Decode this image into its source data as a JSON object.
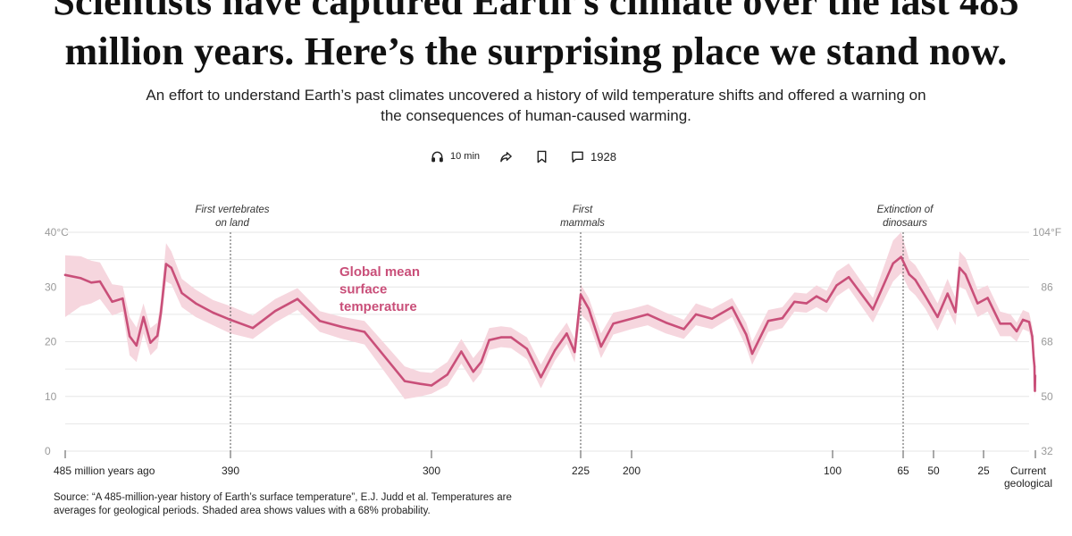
{
  "article": {
    "headline": "Scientists have captured Earth’s climate over the last 485 million years. Here’s the surprising place we stand now.",
    "dek": "An effort to understand Earth’s past climates uncovered a history of wild temperature shifts and offered a warning on the consequences of human-caused warming."
  },
  "actions": {
    "listen_label": "10 min",
    "comments_count": "1928"
  },
  "source_note": "Source: “A 485-million-year history of Earth’s surface temperature”, E.J. Judd et al. Temperatures are averages for geological periods. Shaded area shows values with a 68% probability.",
  "chart_data": {
    "type": "line",
    "series_label": [
      "Global mean",
      "surface",
      "temperature"
    ],
    "x_unit": "million years ago",
    "x_reversed": true,
    "xlim": [
      485,
      0
    ],
    "ylim": [
      0,
      40
    ],
    "grid": true,
    "y_ticks": [
      {
        "value": 0,
        "label": "0"
      },
      {
        "value": 10,
        "label": "10"
      },
      {
        "value": 20,
        "label": "20"
      },
      {
        "value": 30,
        "label": "30"
      },
      {
        "value": 40,
        "label": "40°C"
      }
    ],
    "y_ticks_right": [
      {
        "value": 0,
        "label": "32"
      },
      {
        "value": 10,
        "label": "50"
      },
      {
        "value": 20,
        "label": "68"
      },
      {
        "value": 30,
        "label": "86"
      },
      {
        "value": 40,
        "label": "104°F"
      }
    ],
    "x_ticks": [
      {
        "value": 485,
        "label": [
          "485 million years ago"
        ],
        "anchor": "start"
      },
      {
        "value": 390,
        "label": [
          "390"
        ]
      },
      {
        "value": 300,
        "label": [
          "300"
        ]
      },
      {
        "value": 225,
        "label": [
          "225"
        ]
      },
      {
        "value": 200,
        "label": [
          "200"
        ]
      },
      {
        "value": 100,
        "label": [
          "100"
        ]
      },
      {
        "value": 65,
        "label": [
          "65"
        ]
      },
      {
        "value": 50,
        "label": [
          "50"
        ]
      },
      {
        "value": 25,
        "label": [
          "25"
        ]
      },
      {
        "value": 0,
        "label": [
          "Current",
          "geological",
          "stage"
        ]
      }
    ],
    "annotations": [
      {
        "x": 390,
        "lines": [
          "First vertebrates",
          "on land"
        ]
      },
      {
        "x": 225,
        "lines": [
          "First",
          "mammals"
        ]
      },
      {
        "x": 65,
        "lines": [
          "Extinction of",
          "dinosaurs"
        ]
      }
    ],
    "colors": {
      "line": "#c94f79",
      "band": "#f6d6de",
      "label": "#c94f79",
      "grid": "#e6e6e6",
      "axis_text": "#9a9a9a",
      "tick_text": "#222222",
      "annotation": "#333333"
    },
    "points": [
      {
        "x": 485,
        "y": 32.2,
        "lo": 24.5,
        "hi": 35.8
      },
      {
        "x": 476,
        "y": 31.6,
        "lo": 26.5,
        "hi": 35.6
      },
      {
        "x": 470,
        "y": 30.8,
        "lo": 27.0,
        "hi": 34.8
      },
      {
        "x": 465,
        "y": 31.0,
        "lo": 27.8,
        "hi": 34.5
      },
      {
        "x": 458,
        "y": 27.3,
        "lo": 24.8,
        "hi": 30.5
      },
      {
        "x": 452,
        "y": 27.9,
        "lo": 25.5,
        "hi": 30.2
      },
      {
        "x": 448,
        "y": 21.0,
        "lo": 17.5,
        "hi": 24.5
      },
      {
        "x": 444,
        "y": 19.3,
        "lo": 16.3,
        "hi": 22.6
      },
      {
        "x": 440,
        "y": 24.5,
        "lo": 21.5,
        "hi": 27.0
      },
      {
        "x": 436,
        "y": 19.8,
        "lo": 17.5,
        "hi": 22.5
      },
      {
        "x": 432,
        "y": 21.1,
        "lo": 18.8,
        "hi": 23.5
      },
      {
        "x": 430,
        "y": 25.3,
        "lo": 23.0,
        "hi": 27.5
      },
      {
        "x": 427,
        "y": 34.2,
        "lo": 31.0,
        "hi": 38.0
      },
      {
        "x": 424,
        "y": 33.5,
        "lo": 30.5,
        "hi": 36.5
      },
      {
        "x": 418,
        "y": 28.9,
        "lo": 26.3,
        "hi": 31.5
      },
      {
        "x": 410,
        "y": 27.0,
        "lo": 24.5,
        "hi": 29.5
      },
      {
        "x": 400,
        "y": 25.3,
        "lo": 23.0,
        "hi": 27.6
      },
      {
        "x": 390,
        "y": 24.0,
        "lo": 21.5,
        "hi": 26.5
      },
      {
        "x": 380,
        "y": 22.5,
        "lo": 20.5,
        "hi": 24.8
      },
      {
        "x": 370,
        "y": 25.6,
        "lo": 23.5,
        "hi": 27.8
      },
      {
        "x": 360,
        "y": 27.8,
        "lo": 25.8,
        "hi": 29.8
      },
      {
        "x": 350,
        "y": 23.8,
        "lo": 21.8,
        "hi": 25.6
      },
      {
        "x": 340,
        "y": 22.7,
        "lo": 20.5,
        "hi": 24.5
      },
      {
        "x": 330,
        "y": 21.8,
        "lo": 19.5,
        "hi": 23.8
      },
      {
        "x": 312,
        "y": 12.8,
        "lo": 9.5,
        "hi": 15.5
      },
      {
        "x": 305,
        "y": 12.3,
        "lo": 10.0,
        "hi": 14.5
      },
      {
        "x": 300,
        "y": 12.0,
        "lo": 10.5,
        "hi": 14.3
      },
      {
        "x": 292,
        "y": 14.0,
        "lo": 12.0,
        "hi": 16.3
      },
      {
        "x": 285,
        "y": 18.2,
        "lo": 16.0,
        "hi": 20.5
      },
      {
        "x": 279,
        "y": 14.5,
        "lo": 12.5,
        "hi": 17.0
      },
      {
        "x": 275,
        "y": 16.3,
        "lo": 14.3,
        "hi": 18.8
      },
      {
        "x": 271,
        "y": 20.3,
        "lo": 18.5,
        "hi": 22.5
      },
      {
        "x": 265,
        "y": 20.8,
        "lo": 19.0,
        "hi": 22.8
      },
      {
        "x": 260,
        "y": 20.8,
        "lo": 18.8,
        "hi": 22.6
      },
      {
        "x": 252,
        "y": 18.7,
        "lo": 16.8,
        "hi": 20.8
      },
      {
        "x": 245,
        "y": 13.5,
        "lo": 11.5,
        "hi": 15.8
      },
      {
        "x": 238,
        "y": 18.4,
        "lo": 16.5,
        "hi": 20.5
      },
      {
        "x": 232,
        "y": 21.5,
        "lo": 19.6,
        "hi": 23.5
      },
      {
        "x": 228,
        "y": 18.1,
        "lo": 16.2,
        "hi": 20.5
      },
      {
        "x": 225,
        "y": 28.6,
        "lo": 25.0,
        "hi": 30.5
      },
      {
        "x": 221,
        "y": 26.0,
        "lo": 23.5,
        "hi": 28.0
      },
      {
        "x": 215,
        "y": 19.1,
        "lo": 17.0,
        "hi": 21.5
      },
      {
        "x": 209,
        "y": 23.3,
        "lo": 21.3,
        "hi": 25.3
      },
      {
        "x": 200,
        "y": 24.2,
        "lo": 22.3,
        "hi": 26.0
      },
      {
        "x": 192,
        "y": 25.0,
        "lo": 23.0,
        "hi": 26.8
      },
      {
        "x": 183,
        "y": 23.5,
        "lo": 21.5,
        "hi": 25.3
      },
      {
        "x": 174,
        "y": 22.3,
        "lo": 20.5,
        "hi": 24.0
      },
      {
        "x": 168,
        "y": 25.0,
        "lo": 23.0,
        "hi": 27.0
      },
      {
        "x": 160,
        "y": 24.2,
        "lo": 22.3,
        "hi": 26.0
      },
      {
        "x": 150,
        "y": 26.3,
        "lo": 24.5,
        "hi": 28.0
      },
      {
        "x": 143,
        "y": 21.3,
        "lo": 19.0,
        "hi": 23.5
      },
      {
        "x": 140,
        "y": 17.8,
        "lo": 15.8,
        "hi": 20.0
      },
      {
        "x": 132,
        "y": 23.8,
        "lo": 21.8,
        "hi": 25.8
      },
      {
        "x": 125,
        "y": 24.3,
        "lo": 22.5,
        "hi": 26.3
      },
      {
        "x": 119,
        "y": 27.3,
        "lo": 25.5,
        "hi": 29.0
      },
      {
        "x": 113,
        "y": 27.0,
        "lo": 25.3,
        "hi": 28.8
      },
      {
        "x": 108,
        "y": 28.3,
        "lo": 26.3,
        "hi": 30.3
      },
      {
        "x": 103,
        "y": 27.3,
        "lo": 25.3,
        "hi": 29.3
      },
      {
        "x": 98,
        "y": 30.3,
        "lo": 28.3,
        "hi": 32.8
      },
      {
        "x": 92,
        "y": 31.8,
        "lo": 29.8,
        "hi": 34.3
      },
      {
        "x": 80,
        "y": 25.9,
        "lo": 23.5,
        "hi": 28.0
      },
      {
        "x": 70,
        "y": 34.3,
        "lo": 31.0,
        "hi": 38.5
      },
      {
        "x": 66,
        "y": 35.5,
        "lo": 32.5,
        "hi": 40.0
      },
      {
        "x": 62,
        "y": 32.3,
        "lo": 29.5,
        "hi": 35.0
      },
      {
        "x": 59,
        "y": 31.3,
        "lo": 28.5,
        "hi": 34.0
      },
      {
        "x": 54,
        "y": 28.3,
        "lo": 26.0,
        "hi": 31.0
      },
      {
        "x": 48,
        "y": 24.5,
        "lo": 22.0,
        "hi": 27.0
      },
      {
        "x": 43,
        "y": 28.8,
        "lo": 26.0,
        "hi": 31.5
      },
      {
        "x": 39,
        "y": 25.4,
        "lo": 23.0,
        "hi": 28.0
      },
      {
        "x": 37,
        "y": 33.5,
        "lo": 30.0,
        "hi": 36.5
      },
      {
        "x": 34,
        "y": 32.3,
        "lo": 29.5,
        "hi": 35.3
      },
      {
        "x": 28,
        "y": 27.0,
        "lo": 24.5,
        "hi": 29.5
      },
      {
        "x": 23,
        "y": 28.0,
        "lo": 25.5,
        "hi": 30.3
      },
      {
        "x": 17,
        "y": 23.3,
        "lo": 21.0,
        "hi": 25.5
      },
      {
        "x": 12,
        "y": 23.3,
        "lo": 21.0,
        "hi": 25.0
      },
      {
        "x": 9,
        "y": 21.9,
        "lo": 20.0,
        "hi": 23.5
      },
      {
        "x": 6,
        "y": 24.0,
        "lo": 22.3,
        "hi": 25.8
      },
      {
        "x": 3,
        "y": 23.6,
        "lo": 21.8,
        "hi": 25.3
      },
      {
        "x": 1.5,
        "y": 21.0,
        "lo": 19.3,
        "hi": 22.8
      },
      {
        "x": 0.8,
        "y": 17.0,
        "lo": 15.3,
        "hi": 18.8
      },
      {
        "x": 0.45,
        "y": 15.5,
        "lo": 13.8,
        "hi": 17.3
      },
      {
        "x": 0.3,
        "y": 12.0,
        "lo": 10.5,
        "hi": 13.5
      },
      {
        "x": 0.2,
        "y": 11.0,
        "lo": 9.8,
        "hi": 12.5
      },
      {
        "x": 0.1,
        "y": 13.8,
        "lo": 12.3,
        "hi": 15.3
      }
    ]
  }
}
